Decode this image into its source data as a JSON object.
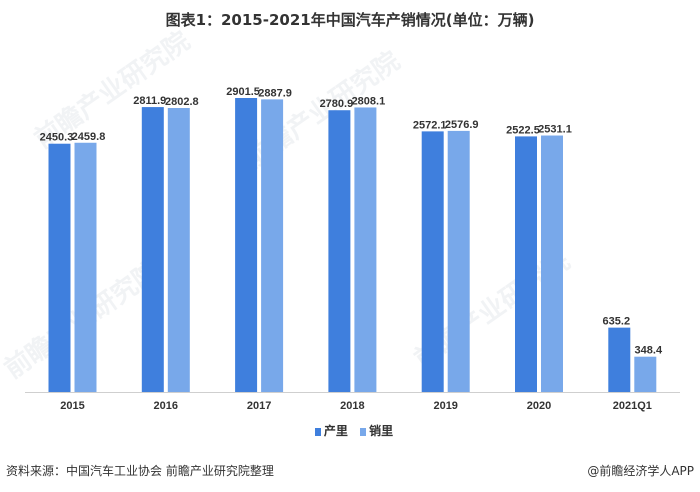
{
  "chart_data": {
    "type": "bar",
    "title": "图表1：2015-2021年中国汽车产销情况(单位：万辆)",
    "categories": [
      "2015",
      "2016",
      "2017",
      "2018",
      "2019",
      "2020",
      "2021Q1"
    ],
    "series": [
      {
        "name": "产量",
        "color": "#3f7fdd",
        "values": [
          2450.3,
          2811.9,
          2901.5,
          2780.9,
          2572.1,
          2522.5,
          635.2
        ]
      },
      {
        "name": "销量",
        "color": "#78a8ea",
        "values": [
          2459.8,
          2802.8,
          2887.9,
          2808.1,
          2576.9,
          2531.1,
          348.4
        ]
      }
    ],
    "legend_labels": [
      "产里",
      "销里"
    ],
    "ylim": [
      0,
      2950
    ],
    "grid": false,
    "legend_position": "bottom-center"
  },
  "footer": {
    "source": "资料来源：中国汽车工业协会 前瞻产业研究院整理",
    "credit": "@前瞻经济学人APP"
  },
  "watermark": "前瞻产业研究院"
}
